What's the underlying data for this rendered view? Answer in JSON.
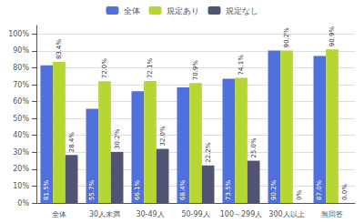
{
  "chart_data": {
    "type": "bar",
    "categories": [
      "全体",
      "30人未満",
      "30-49人",
      "50-99人",
      "100～299人",
      "300人以上",
      "無回答"
    ],
    "series": [
      {
        "name": "全体",
        "values": [
          81.5,
          55.7,
          66.1,
          68.4,
          73.5,
          90.2,
          87.0
        ],
        "value_labels": [
          "81.5%",
          "55.7%",
          "66.1%",
          "68.4%",
          "73.5%",
          "90.2%",
          "87.0%"
        ]
      },
      {
        "name": "規定あり",
        "values": [
          83.4,
          72.0,
          72.1,
          70.9,
          74.1,
          90.2,
          90.9
        ],
        "value_labels": [
          "83.4%",
          "72.0%",
          "72.1%",
          "70.9%",
          "74.1%",
          "90.2%",
          "90.9%"
        ]
      },
      {
        "name": "規定なし",
        "values": [
          28.4,
          30.2,
          32.0,
          22.2,
          25.0,
          0.0,
          0.0
        ],
        "value_labels": [
          "28.4%",
          "30.2%",
          "32.0%",
          "22.2%",
          "25.0%",
          "0%",
          "0.0%"
        ]
      }
    ],
    "ylim": [
      0,
      105
    ],
    "yticks": [
      {
        "value": 0,
        "label": "0%"
      },
      {
        "value": 10,
        "label": "10%"
      },
      {
        "value": 20,
        "label": "20%"
      },
      {
        "value": 30,
        "label": "30%"
      },
      {
        "value": 40,
        "label": "40%"
      },
      {
        "value": 50,
        "label": "50%"
      },
      {
        "value": 60,
        "label": "60%"
      },
      {
        "value": 70,
        "label": "70%"
      },
      {
        "value": 80,
        "label": "80%"
      },
      {
        "value": 90,
        "label": "90%"
      },
      {
        "value": 100,
        "label": "100%"
      }
    ],
    "grid": true,
    "legend": "top",
    "data_labels": true
  }
}
